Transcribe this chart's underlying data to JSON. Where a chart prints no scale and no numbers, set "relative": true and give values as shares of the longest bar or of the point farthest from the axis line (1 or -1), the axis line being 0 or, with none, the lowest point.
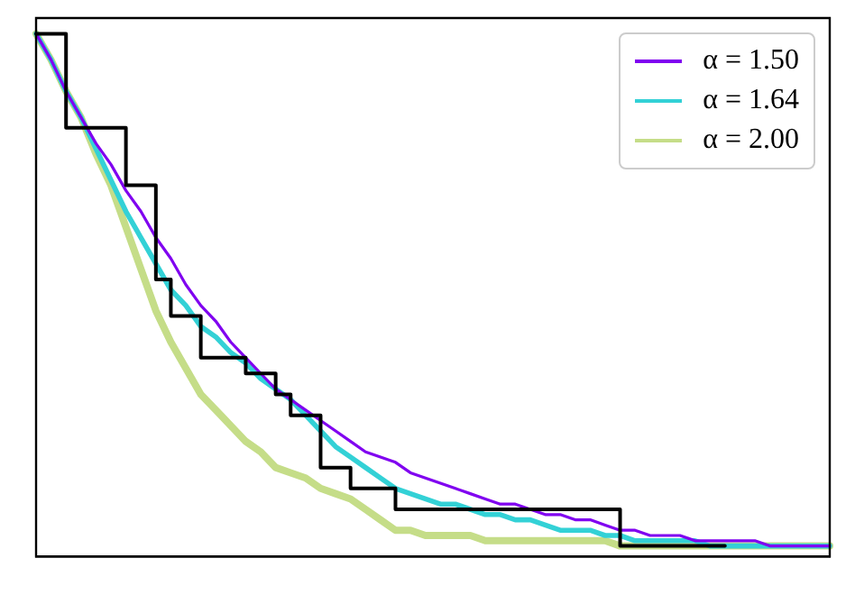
{
  "chart_data": {
    "type": "line",
    "relative": true,
    "legend": "top right",
    "grid": false,
    "marker": "none",
    "line_style": "solid",
    "categories": [
      null,
      null,
      null,
      null,
      null,
      null,
      null,
      null,
      null,
      null,
      null,
      null,
      null,
      null,
      null,
      null,
      null,
      null,
      null,
      null,
      null,
      null,
      null,
      null,
      null,
      null,
      null,
      null,
      null,
      null,
      null,
      null,
      null,
      null,
      null,
      null,
      null,
      null,
      null,
      null,
      null,
      null,
      null,
      null,
      null,
      null,
      null,
      null,
      null,
      null,
      null,
      null,
      null,
      null
    ],
    "series": [
      {
        "name": "α = 1.50",
        "color": "#8000f0",
        "values": [
          1.0,
          0.95,
          0.89,
          0.84,
          0.79,
          0.75,
          0.7,
          0.66,
          0.61,
          0.57,
          0.52,
          0.48,
          0.45,
          0.41,
          0.38,
          0.35,
          0.32,
          0.3,
          0.28,
          0.26,
          0.24,
          0.22,
          0.2,
          0.19,
          0.18,
          0.16,
          0.15,
          0.14,
          0.13,
          0.12,
          0.11,
          0.1,
          0.1,
          0.09,
          0.08,
          0.08,
          0.07,
          0.07,
          0.06,
          0.05,
          0.05,
          0.04,
          0.04,
          0.04,
          0.03,
          0.03,
          0.03,
          0.03,
          0.03,
          0.02,
          0.02,
          0.02,
          0.02,
          0.02
        ]
      },
      {
        "name": "α = 1.64",
        "color": "#33d1d6",
        "values": [
          1.0,
          0.95,
          0.89,
          0.84,
          0.78,
          0.72,
          0.66,
          0.61,
          0.56,
          0.51,
          0.48,
          0.44,
          0.42,
          0.39,
          0.37,
          0.34,
          0.32,
          0.3,
          0.27,
          0.24,
          0.21,
          0.19,
          0.17,
          0.15,
          0.13,
          0.12,
          0.11,
          0.1,
          0.1,
          0.09,
          0.08,
          0.08,
          0.07,
          0.07,
          0.06,
          0.05,
          0.05,
          0.05,
          0.04,
          0.04,
          0.03,
          0.03,
          0.03,
          0.03,
          0.03,
          0.02,
          0.02,
          0.02,
          0.02,
          0.02,
          0.02,
          0.02,
          0.02,
          0.02
        ]
      },
      {
        "name": "α = 2.00",
        "color": "#c5dd88",
        "values": [
          1.0,
          0.95,
          0.89,
          0.84,
          0.77,
          0.71,
          0.63,
          0.55,
          0.47,
          0.41,
          0.36,
          0.31,
          0.28,
          0.25,
          0.22,
          0.2,
          0.17,
          0.16,
          0.15,
          0.13,
          0.12,
          0.11,
          0.09,
          0.07,
          0.05,
          0.05,
          0.04,
          0.04,
          0.04,
          0.04,
          0.03,
          0.03,
          0.03,
          0.03,
          0.03,
          0.03,
          0.03,
          0.03,
          0.03,
          0.02,
          0.02,
          0.02,
          0.02,
          0.02,
          0.02,
          0.02,
          0.02,
          0.02,
          0.02,
          0.02,
          0.02,
          0.02,
          0.02,
          0.02
        ]
      },
      {
        "type": "step",
        "color": "#000000",
        "values": [
          1.0,
          1.0,
          1.0,
          0.82,
          0.82,
          0.82,
          0.82,
          0.71,
          0.71,
          0.53,
          0.46,
          0.46,
          0.38,
          0.38,
          0.38,
          0.35,
          0.35,
          0.31,
          0.27,
          0.27,
          0.17,
          0.17,
          0.13,
          0.13,
          0.13,
          0.09,
          0.09,
          0.09,
          0.09,
          0.09,
          0.09,
          0.09,
          0.09,
          0.09,
          0.09,
          0.09,
          0.09,
          0.09,
          0.09,
          0.09,
          0.02,
          0.02,
          0.02,
          0.02,
          0.02,
          0.02,
          0.02,
          null,
          null,
          null,
          null,
          null,
          null,
          null
        ]
      }
    ]
  }
}
